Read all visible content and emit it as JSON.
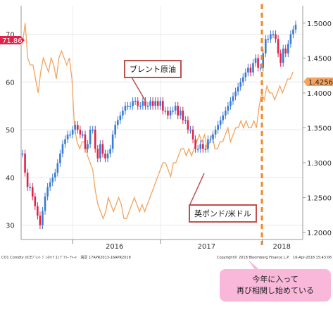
{
  "chart_data": {
    "type": "line",
    "x_labels": [
      "2016",
      "2017",
      "2018"
    ],
    "left_axis": {
      "ticks": [
        "30",
        "40",
        "50",
        "60",
        "70"
      ],
      "ylim": [
        27,
        76
      ]
    },
    "right_axis": {
      "ticks": [
        "1.2000",
        "1.2500",
        "1.3000",
        "1.3500",
        "1.4000",
        "1.4500",
        "1.5000"
      ],
      "ylim": [
        1.19,
        1.525
      ]
    },
    "current_labels": {
      "brent": "71.86",
      "gbpusd": "1.4256"
    },
    "series": [
      {
        "name": "ブレント原油",
        "kind": "candlestick",
        "axis": "left",
        "color_up": "#3a7bd5",
        "color_down": "#e0234a",
        "values": [
          45,
          41,
          38,
          38,
          36,
          34,
          32,
          30,
          33,
          36,
          38,
          39,
          40,
          41,
          43,
          45,
          47,
          48,
          49,
          49,
          50,
          51,
          50,
          49,
          49,
          46,
          47,
          50,
          50,
          46,
          44,
          47,
          45,
          44,
          45,
          46,
          49,
          51,
          52,
          53,
          54,
          55,
          55,
          55,
          56,
          56,
          55,
          55,
          56,
          55,
          55,
          56,
          55,
          56,
          55,
          56,
          54,
          54,
          53,
          54,
          54,
          55,
          53,
          54,
          52,
          52,
          50,
          50,
          48,
          46,
          46,
          47,
          46,
          46,
          48,
          48,
          49,
          50,
          51,
          52,
          53,
          54,
          55,
          56,
          57,
          58,
          59,
          60,
          61,
          62,
          63,
          62,
          64,
          65,
          63,
          63,
          66,
          69,
          69,
          70,
          70,
          69,
          66,
          64,
          67,
          66,
          68,
          70,
          71,
          72
        ]
      },
      {
        "name": "英ポンド/米ドル",
        "kind": "line",
        "axis": "right",
        "color": "#f4a460",
        "values": [
          1.47,
          1.5,
          1.45,
          1.44,
          1.44,
          1.42,
          1.4,
          1.43,
          1.45,
          1.44,
          1.43,
          1.45,
          1.44,
          1.42,
          1.45,
          1.46,
          1.45,
          1.44,
          1.45,
          1.42,
          1.35,
          1.33,
          1.32,
          1.33,
          1.33,
          1.31,
          1.3,
          1.29,
          1.26,
          1.24,
          1.23,
          1.22,
          1.23,
          1.25,
          1.24,
          1.23,
          1.24,
          1.25,
          1.24,
          1.22,
          1.22,
          1.23,
          1.24,
          1.25,
          1.24,
          1.23,
          1.24,
          1.23,
          1.24,
          1.25,
          1.26,
          1.27,
          1.28,
          1.29,
          1.3,
          1.3,
          1.29,
          1.28,
          1.3,
          1.3,
          1.31,
          1.32,
          1.32,
          1.31,
          1.32,
          1.31,
          1.32,
          1.33,
          1.34,
          1.33,
          1.34,
          1.32,
          1.33,
          1.34,
          1.32,
          1.32,
          1.33,
          1.33,
          1.34,
          1.35,
          1.33,
          1.34,
          1.35,
          1.35,
          1.36,
          1.35,
          1.36,
          1.35,
          1.35,
          1.36,
          1.35,
          1.38,
          1.4,
          1.39,
          1.41,
          1.4,
          1.4,
          1.39,
          1.4,
          1.41,
          1.4,
          1.41,
          1.42,
          1.42,
          1.43
        ]
      }
    ],
    "annotations": {
      "brent_label": "ブレント原油",
      "gbp_label": "英ポンド/米ドル",
      "callout": [
        "今年に入って",
        "再び相関し始めている"
      ]
    },
    "footer": {
      "left": "CO1 Comdty (ICEﾌﾞﾚﾝﾄ ｼﾞｪﾈﾘｯｸ 1) ﾃﾞｲﾘｰ ﾁｬｰﾄ　週足 17APR2013-16APR2018",
      "right": "Copyright© 2018 Bloomberg Finance L.P.　16-Apr-2018 15:43:06"
    },
    "grid": true,
    "legend": "none"
  }
}
